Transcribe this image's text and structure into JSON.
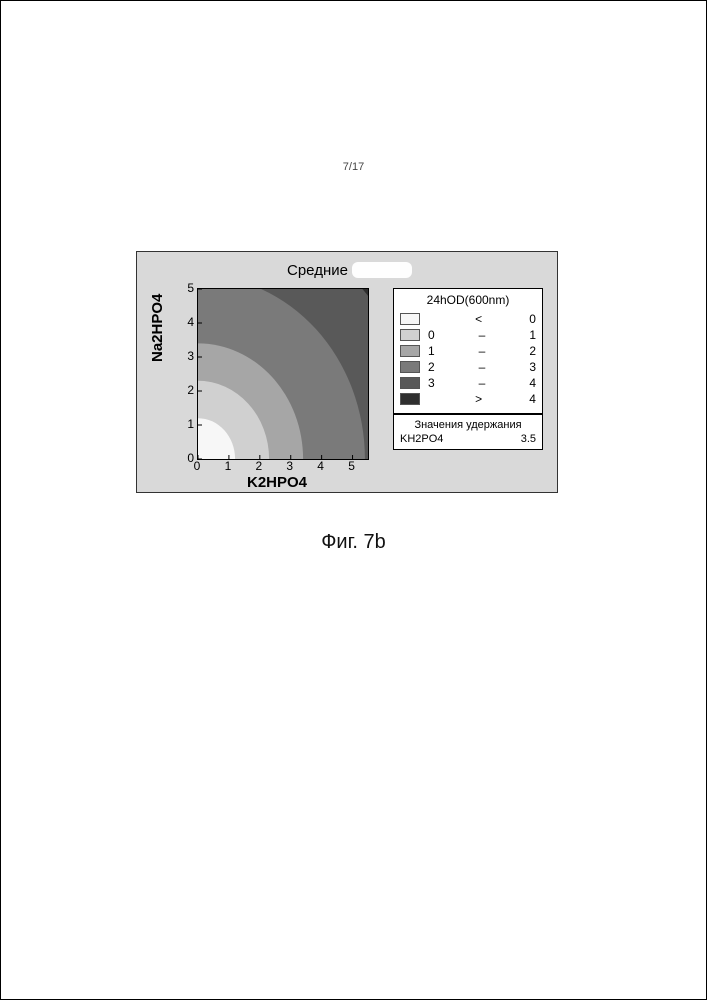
{
  "page_number": "7/17",
  "figure_caption": "Фиг. 7b",
  "panel": {
    "background": "#d9d9d9",
    "title": "Средние"
  },
  "contour": {
    "type": "contour",
    "xlabel": "K2HPO4",
    "ylabel": "Na2HPO4",
    "xlim": [
      0,
      5.5
    ],
    "ylim": [
      0,
      5
    ],
    "xticks": [
      0,
      1,
      2,
      3,
      4,
      5
    ],
    "yticks": [
      0,
      1,
      2,
      3,
      4,
      5
    ],
    "x_tick_labels": [
      "0",
      "1",
      "2",
      "3",
      "4",
      "5"
    ],
    "y_tick_labels": [
      "0",
      "1",
      "2",
      "3",
      "4",
      "5"
    ],
    "label_fontsize": 15,
    "tick_fontsize": 12,
    "plot_bg": "#ffffff",
    "levels": [
      0,
      1,
      2,
      3,
      4
    ],
    "band_colors": [
      "#f7f7f7",
      "#d0d0d0",
      "#a6a6a6",
      "#7a7a7a",
      "#595959",
      "#2f2f2f"
    ],
    "band_radii_origin": [
      1.2,
      2.3,
      3.4,
      5.4,
      7.3
    ]
  },
  "legend": {
    "title": "24hOD(600nm)",
    "rows": [
      {
        "color": "#f7f7f7",
        "from": "",
        "op": "<",
        "to": "0"
      },
      {
        "color": "#d0d0d0",
        "from": "0",
        "op": "–",
        "to": "1"
      },
      {
        "color": "#a6a6a6",
        "from": "1",
        "op": "–",
        "to": "2"
      },
      {
        "color": "#7a7a7a",
        "from": "2",
        "op": "–",
        "to": "3"
      },
      {
        "color": "#595959",
        "from": "3",
        "op": "–",
        "to": "4"
      },
      {
        "color": "#2f2f2f",
        "from": "",
        "op": ">",
        "to": "4"
      }
    ]
  },
  "hold": {
    "title": "Значения удержания",
    "rows": [
      {
        "name": "KH2PO4",
        "value": "3.5"
      }
    ]
  }
}
